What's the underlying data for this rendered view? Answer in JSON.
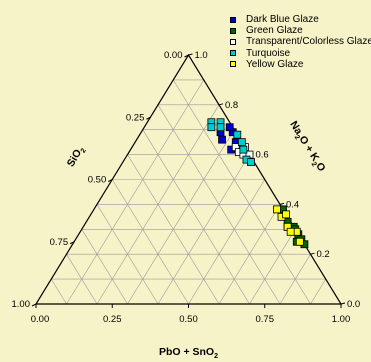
{
  "chart_data": {
    "type": "scatter",
    "subtype": "ternary",
    "axes": {
      "bottom": {
        "label": "PbO + SnO",
        "label_sub": "2",
        "ticks": [
          "0.00",
          "0.25",
          "0.50",
          "0.75",
          "1.00"
        ]
      },
      "left": {
        "label": "SiO",
        "label_sub": "2",
        "ticks": [
          "1.00",
          "0.75",
          "0.50",
          "0.25",
          "0.00"
        ]
      },
      "right": {
        "label_parts": [
          "Na",
          "2",
          "O + K",
          "2",
          "O"
        ],
        "ticks": [
          "1.0",
          "0.8",
          "0.6",
          "0.4",
          "0.2",
          "0.0"
        ]
      }
    },
    "grid": true,
    "legend_position": "top-right",
    "series": [
      {
        "name": "Dark Blue Glaze",
        "color": "#0000cc",
        "points": [
          {
            "pbo_sno2": 0.26,
            "sio2": 0.69,
            "na2o_k2o": 0.05
          },
          {
            "pbo_sno2": 0.28,
            "sio2": 0.66,
            "na2o_k2o": 0.06
          },
          {
            "pbo_sno2": 0.3,
            "sio2": 0.69,
            "na2o_k2o": 0.01
          },
          {
            "pbo_sno2": 0.33,
            "sio2": 0.65,
            "na2o_k2o": 0.02
          },
          {
            "pbo_sno2": 0.33,
            "sio2": 0.62,
            "na2o_k2o": 0.05
          },
          {
            "pbo_sno2": 0.28,
            "sio2": 0.71,
            "na2o_k2o": 0.01
          }
        ]
      },
      {
        "name": "Green Glaze",
        "color": "#006600",
        "points": [
          {
            "pbo_sno2": 0.62,
            "sio2": 0.38,
            "na2o_k2o": 0.0
          },
          {
            "pbo_sno2": 0.66,
            "sio2": 0.33,
            "na2o_k2o": 0.01
          },
          {
            "pbo_sno2": 0.69,
            "sio2": 0.31,
            "na2o_k2o": 0.0
          },
          {
            "pbo_sno2": 0.72,
            "sio2": 0.28,
            "na2o_k2o": 0.0
          },
          {
            "pbo_sno2": 0.74,
            "sio2": 0.26,
            "na2o_k2o": 0.0
          },
          {
            "pbo_sno2": 0.73,
            "sio2": 0.25,
            "na2o_k2o": 0.02
          },
          {
            "pbo_sno2": 0.76,
            "sio2": 0.24,
            "na2o_k2o": 0.0
          },
          {
            "pbo_sno2": 0.7,
            "sio2": 0.3,
            "na2o_k2o": 0.0
          },
          {
            "pbo_sno2": 0.67,
            "sio2": 0.31,
            "na2o_k2o": 0.02
          }
        ]
      },
      {
        "name": "Transparent/Colorless Glaze",
        "color": "#ffffff",
        "points": [
          {
            "pbo_sno2": 0.34,
            "sio2": 0.63,
            "na2o_k2o": 0.03
          },
          {
            "pbo_sno2": 0.36,
            "sio2": 0.61,
            "na2o_k2o": 0.03
          },
          {
            "pbo_sno2": 0.38,
            "sio2": 0.6,
            "na2o_k2o": 0.02
          },
          {
            "pbo_sno2": 0.4,
            "sio2": 0.6,
            "na2o_k2o": 0.0
          },
          {
            "pbo_sno2": 0.37,
            "sio2": 0.63,
            "na2o_k2o": 0.0
          }
        ]
      },
      {
        "name": "Turquoise",
        "color": "#00cccc",
        "points": [
          {
            "pbo_sno2": 0.21,
            "sio2": 0.73,
            "na2o_k2o": 0.06
          },
          {
            "pbo_sno2": 0.22,
            "sio2": 0.71,
            "na2o_k2o": 0.07
          },
          {
            "pbo_sno2": 0.24,
            "sio2": 0.73,
            "na2o_k2o": 0.03
          },
          {
            "pbo_sno2": 0.25,
            "sio2": 0.71,
            "na2o_k2o": 0.04
          },
          {
            "pbo_sno2": 0.32,
            "sio2": 0.68,
            "na2o_k2o": 0.0
          },
          {
            "pbo_sno2": 0.35,
            "sio2": 0.65,
            "na2o_k2o": 0.0
          },
          {
            "pbo_sno2": 0.37,
            "sio2": 0.62,
            "na2o_k2o": 0.01
          },
          {
            "pbo_sno2": 0.4,
            "sio2": 0.58,
            "na2o_k2o": 0.02
          },
          {
            "pbo_sno2": 0.42,
            "sio2": 0.57,
            "na2o_k2o": 0.01
          }
        ]
      },
      {
        "name": "Yellow Glaze",
        "color": "#ffff00",
        "points": [
          {
            "pbo_sno2": 0.6,
            "sio2": 0.38,
            "na2o_k2o": 0.02
          },
          {
            "pbo_sno2": 0.63,
            "sio2": 0.35,
            "na2o_k2o": 0.02
          },
          {
            "pbo_sno2": 0.64,
            "sio2": 0.36,
            "na2o_k2o": 0.0
          },
          {
            "pbo_sno2": 0.67,
            "sio2": 0.31,
            "na2o_k2o": 0.02
          },
          {
            "pbo_sno2": 0.71,
            "sio2": 0.29,
            "na2o_k2o": 0.0
          },
          {
            "pbo_sno2": 0.74,
            "sio2": 0.25,
            "na2o_k2o": 0.01
          },
          {
            "pbo_sno2": 0.69,
            "sio2": 0.29,
            "na2o_k2o": 0.02
          }
        ]
      }
    ]
  }
}
